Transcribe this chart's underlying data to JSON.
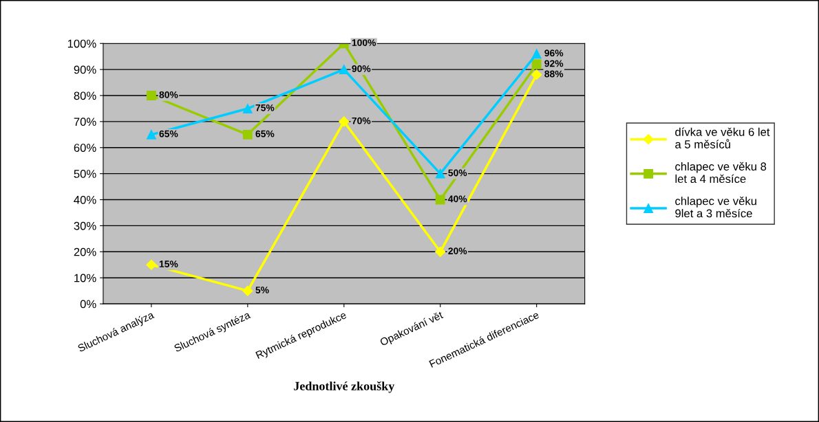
{
  "chart_data": {
    "type": "line",
    "categories": [
      "Sluchová analýza",
      "Sluchová syntéza",
      "Rytmická reprodukce",
      "Opakování vět",
      "Fonematická diferenciace"
    ],
    "xlabel": "Jednotlivé zkoušky",
    "ylim": [
      0,
      100
    ],
    "yticks": [
      {
        "value": 0,
        "label": "0%"
      },
      {
        "value": 10,
        "label": "10%"
      },
      {
        "value": 20,
        "label": "20%"
      },
      {
        "value": 30,
        "label": "30%"
      },
      {
        "value": 40,
        "label": "40%"
      },
      {
        "value": 50,
        "label": "50%"
      },
      {
        "value": 60,
        "label": "60%"
      },
      {
        "value": 70,
        "label": "70%"
      },
      {
        "value": 80,
        "label": "80%"
      },
      {
        "value": 90,
        "label": "90%"
      },
      {
        "value": 100,
        "label": "100%"
      }
    ],
    "grid": "y",
    "legend": "right",
    "series": [
      {
        "name": "dívka ve věku 6 let\na 5 měsíců",
        "color": "#ffff00",
        "marker": "diamond",
        "values": [
          15,
          5,
          70,
          20,
          88
        ],
        "value_labels": [
          "15%",
          "5%",
          "70%",
          "20%",
          "88%"
        ]
      },
      {
        "name": "chlapec ve věku 8\nlet a 4 měsíce",
        "color": "#99cc00",
        "marker": "square",
        "values": [
          80,
          65,
          100,
          40,
          92
        ],
        "value_labels": [
          "80%",
          "65%",
          "100%",
          "40%",
          "92%"
        ]
      },
      {
        "name": "chlapec ve věku\n9let a 3 měsíce",
        "color": "#00ccff",
        "marker": "triangle",
        "values": [
          65,
          75,
          90,
          50,
          96
        ],
        "value_labels": [
          "65%",
          "75%",
          "90%",
          "50%",
          "96%"
        ]
      }
    ]
  }
}
